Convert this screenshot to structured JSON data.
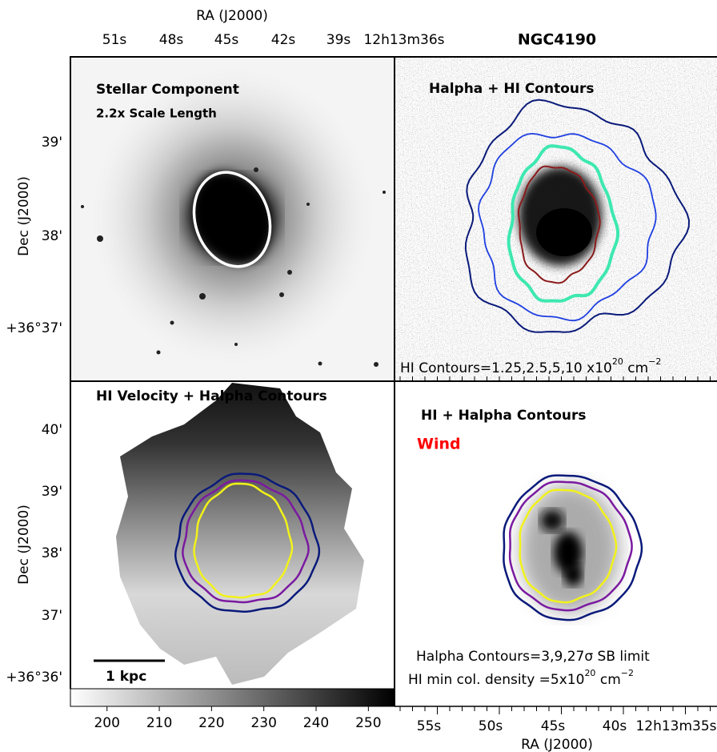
{
  "title": "NGC4190",
  "top_axis": {
    "label": "RA (J2000)",
    "ticks": [
      "51s",
      "48s",
      "45s",
      "42s",
      "39s",
      "12h13m36s"
    ]
  },
  "left_axis_top": {
    "label": "Dec (J2000)",
    "ticks": [
      "39'",
      "38'",
      "+36°37'"
    ]
  },
  "left_axis_bottom": {
    "label": "Dec (J2000)",
    "ticks": [
      "40'",
      "39'",
      "38'",
      "37'",
      "+36°36'"
    ]
  },
  "bottom_axis": {
    "label": "RA (J2000)",
    "ticks": [
      "55s",
      "50s",
      "45s",
      "40s",
      "12h13m35s"
    ]
  },
  "panels": [
    {
      "title": "Stellar Component",
      "subtitle": "2.2x Scale Length"
    },
    {
      "title": "Halpha + HI Contours",
      "note": {
        "text": "HI Contours=1.25,2.5,5,10 x10",
        "exp": "20",
        "unit": " cm",
        "unit_exp": "−2"
      }
    },
    {
      "title": "HI Velocity + Halpha Contours",
      "scale_bar": "1 kpc"
    },
    {
      "title": "HI + Halpha Contours",
      "tag": "Wind",
      "note1": "Halpha Contours=3,9,27σ SB limit",
      "note2": {
        "text": "HI min col. density =5x10",
        "exp": "20",
        "unit": " cm",
        "unit_exp": "−2"
      }
    }
  ],
  "colorbar": {
    "range": [
      193,
      255
    ],
    "ticks": [
      200,
      210,
      220,
      230,
      240,
      250
    ]
  }
}
